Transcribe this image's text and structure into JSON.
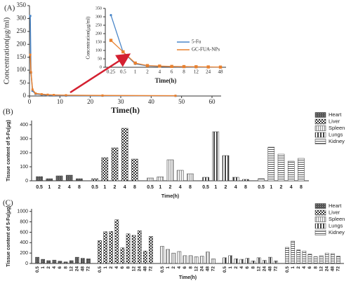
{
  "chart_data": [
    {
      "type": "line",
      "label": "(A)",
      "ylabel": "Concentration(μg/ml)",
      "xlabel": "Time(h)",
      "x": [
        0.25,
        0.5,
        1,
        2,
        4,
        6,
        8,
        12,
        24,
        48
      ],
      "series": [
        {
          "name": "5-Fu",
          "color": "#4a86c8",
          "values": [
            310,
            90,
            20,
            8,
            5,
            3,
            2,
            1,
            1,
            0.5
          ]
        },
        {
          "name": "GC-FUA-NPs",
          "color": "#e9812f",
          "values": [
            160,
            92,
            25,
            10,
            7,
            5,
            4,
            3,
            2,
            1
          ]
        }
      ],
      "xlim": [
        0,
        63
      ],
      "xticks": [
        0,
        10,
        20,
        30,
        40,
        50,
        60
      ],
      "ylim": [
        0,
        350
      ],
      "yticks": [
        0,
        50,
        100,
        150,
        200,
        250,
        300,
        350
      ],
      "inset_ylabel": "Concentration(μg/ml)",
      "inset_xlabel": "Time(h)"
    },
    {
      "type": "bar",
      "label": "(B)",
      "ylabel": "Tissue content of 5-Fu(μg)",
      "xlabel": "Time(h)",
      "categories": [
        "0.5",
        "1",
        "2",
        "4",
        "8"
      ],
      "series": [
        {
          "name": "Heart",
          "values": [
            30,
            15,
            35,
            40,
            15
          ]
        },
        {
          "name": "Liver",
          "values": [
            15,
            165,
            235,
            375,
            155
          ]
        },
        {
          "name": "Spleen",
          "values": [
            20,
            28,
            150,
            75,
            50
          ]
        },
        {
          "name": "Lungs",
          "values": [
            25,
            350,
            180,
            25,
            10
          ]
        },
        {
          "name": "Kidney",
          "values": [
            15,
            240,
            190,
            140,
            160
          ]
        }
      ],
      "ylim": [
        0,
        430
      ],
      "yticks": [
        0,
        100,
        200,
        300,
        400
      ]
    },
    {
      "type": "bar",
      "label": "(C)",
      "ylabel": "Tissue content of 5-Fu(μg)",
      "xlabel": "Time(h)",
      "categories": [
        "0.5",
        "1",
        "2",
        "4",
        "6",
        "8",
        "12",
        "24",
        "48",
        "72"
      ],
      "series": [
        {
          "name": "Heart",
          "values": [
            120,
            80,
            55,
            65,
            45,
            30,
            55,
            120,
            100,
            90
          ]
        },
        {
          "name": "Liver",
          "values": [
            440,
            610,
            615,
            840,
            300,
            570,
            540,
            630,
            240,
            520
          ]
        },
        {
          "name": "Spleen",
          "values": [
            330,
            270,
            200,
            230,
            150,
            150,
            130,
            140,
            220,
            90
          ]
        },
        {
          "name": "Lungs",
          "values": [
            110,
            150,
            90,
            80,
            100,
            50,
            110,
            60,
            120,
            50
          ]
        },
        {
          "name": "Kidney",
          "values": [
            310,
            430,
            260,
            240,
            180,
            130,
            150,
            200,
            190,
            140
          ]
        }
      ],
      "ylim": [
        0,
        1050
      ],
      "yticks": [
        0,
        200,
        400,
        600,
        800,
        1000
      ]
    }
  ]
}
